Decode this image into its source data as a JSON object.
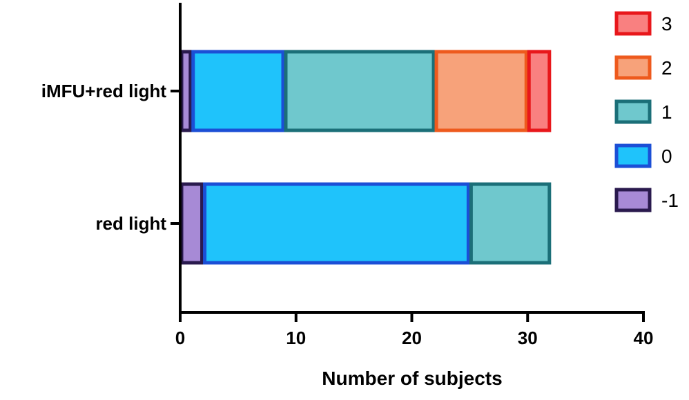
{
  "chart_data": {
    "type": "bar",
    "orientation": "horizontal",
    "stacked": true,
    "title": "",
    "xlabel": "Number of subjects",
    "ylabel": "",
    "xlim": [
      0,
      40
    ],
    "xticks": [
      "0",
      "10",
      "20",
      "30",
      "40"
    ],
    "categories": [
      "iMFU+red light",
      "red light"
    ],
    "series": [
      {
        "name": "-1",
        "values": [
          1,
          2
        ],
        "fill": "#a78ad6",
        "stroke": "#2a1a4e"
      },
      {
        "name": "0",
        "values": [
          8,
          23
        ],
        "fill": "#1fc3fb",
        "stroke": "#1b4fd6"
      },
      {
        "name": "1",
        "values": [
          13,
          7
        ],
        "fill": "#6fc8cd",
        "stroke": "#1b6f78"
      },
      {
        "name": "2",
        "values": [
          8,
          0
        ],
        "fill": "#f7a27a",
        "stroke": "#ee5a1d"
      },
      {
        "name": "3",
        "values": [
          2,
          0
        ],
        "fill": "#f98080",
        "stroke": "#e8171b"
      }
    ],
    "legend": {
      "position": "right",
      "order": [
        "3",
        "2",
        "1",
        "0",
        "-1"
      ]
    },
    "grid": false
  }
}
